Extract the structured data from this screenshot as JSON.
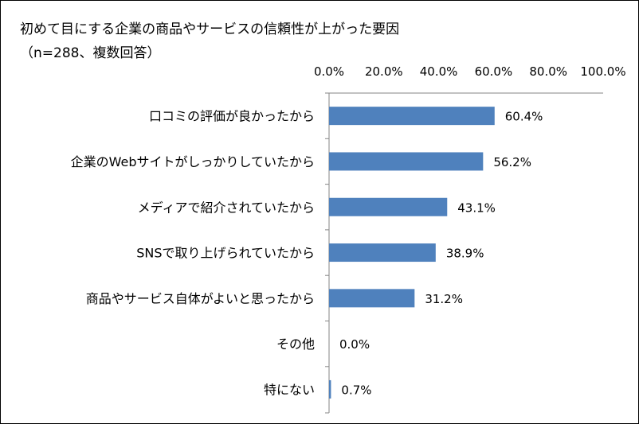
{
  "title_lines": [
    "初めて目にする企業の商品やサービスの信頼性が上がった要因",
    "（n=288、複数回答）"
  ],
  "chart_data": {
    "type": "bar",
    "orientation": "horizontal",
    "title": "初めて目にする企業の商品やサービスの信頼性が上がった要因",
    "subtitle": "（n=288、複数回答）",
    "categories": [
      "口コミの評価が良かったから",
      "企業のWebサイトがしっかりしていたから",
      "メディアで紹介されていたから",
      "SNSで取り上げられていたから",
      "商品やサービス自体がよいと思ったから",
      "その他",
      "特にない"
    ],
    "values": [
      60.4,
      56.2,
      43.1,
      38.9,
      31.2,
      0.0,
      0.7
    ],
    "data_labels": [
      "60.4%",
      "56.2%",
      "43.1%",
      "38.9%",
      "31.2%",
      "0.0%",
      "0.7%"
    ],
    "xlim": [
      0,
      100
    ],
    "x_ticks": [
      0,
      20,
      40,
      60,
      80,
      100
    ],
    "x_tick_labels": [
      "0.0%",
      "20.0%",
      "40.0%",
      "60.0%",
      "80.0%",
      "100.0%"
    ],
    "x_axis_position": "top",
    "grid": false,
    "legend": "none",
    "bar_color": "#4f81bd"
  }
}
